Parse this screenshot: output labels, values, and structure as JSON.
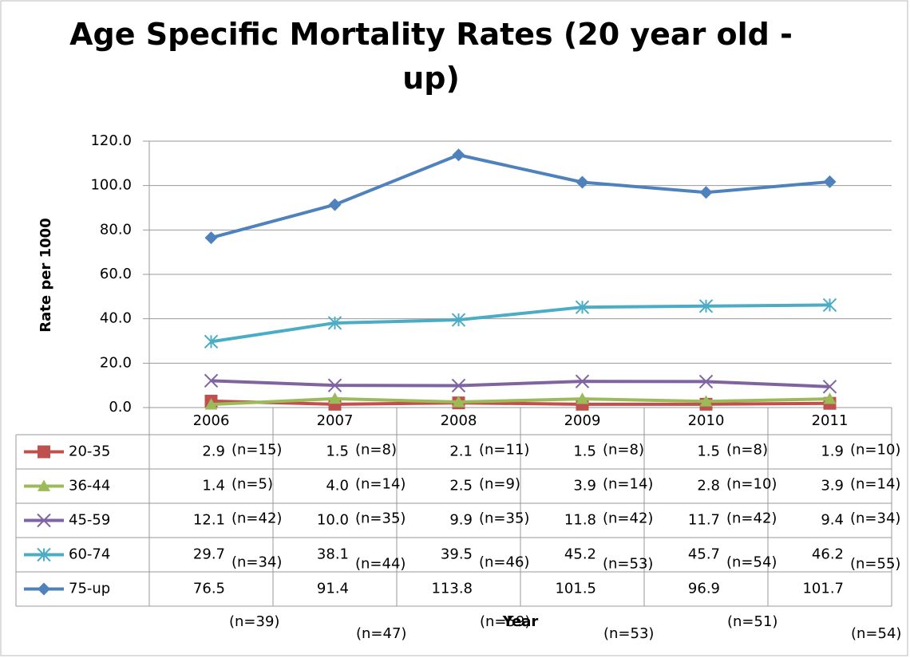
{
  "chart_data": {
    "type": "line",
    "title": "Age Specific Mortality Rates (20 year old - up)",
    "y_label": "Rate per 1000",
    "x_label": "Year",
    "categories": [
      "2006",
      "2007",
      "2008",
      "2009",
      "2010",
      "2011"
    ],
    "ylim": [
      0,
      120
    ],
    "yticks": [
      {
        "value": 0,
        "label": "0.0"
      },
      {
        "value": 20,
        "label": "20.0"
      },
      {
        "value": 40,
        "label": "40.0"
      },
      {
        "value": 60,
        "label": "60.0"
      },
      {
        "value": 80,
        "label": "80.0"
      },
      {
        "value": 100,
        "label": "100.0"
      },
      {
        "value": 120,
        "label": "120.0"
      }
    ],
    "grid": true,
    "series": [
      {
        "name": "20-35",
        "color": "#c0504d",
        "marker": "square",
        "values": [
          2.9,
          1.5,
          2.1,
          1.5,
          1.5,
          1.9
        ],
        "value_labels": [
          "2.9",
          "1.5",
          "2.1",
          "1.5",
          "1.5",
          "1.9"
        ],
        "annotations": [
          "(n=15)",
          "(n=8)",
          "(n=11)",
          "(n=8)",
          "(n=8)",
          "(n=10)"
        ]
      },
      {
        "name": "36-44",
        "color": "#9bbb59",
        "marker": "triangle",
        "values": [
          1.4,
          4.0,
          2.5,
          3.9,
          2.8,
          3.9
        ],
        "value_labels": [
          "1.4",
          "4.0",
          "2.5",
          "3.9",
          "2.8",
          "3.9"
        ],
        "annotations": [
          "(n=5)",
          "(n=14)",
          "(n=9)",
          "(n=14)",
          "(n=10)",
          "(n=14)"
        ]
      },
      {
        "name": "45-59",
        "color": "#8064a2",
        "marker": "x",
        "values": [
          12.1,
          10.0,
          9.9,
          11.8,
          11.7,
          9.4
        ],
        "value_labels": [
          "12.1",
          "10.0",
          "9.9",
          "11.8",
          "11.7",
          "9.4"
        ],
        "annotations": [
          "(n=42)",
          "(n=35)",
          "(n=35)",
          "(n=42)",
          "(n=42)",
          "(n=34)"
        ]
      },
      {
        "name": "60-74",
        "color": "#4bacc6",
        "marker": "asterisk",
        "values": [
          29.7,
          38.1,
          39.5,
          45.2,
          45.7,
          46.2
        ],
        "value_labels": [
          "29.7",
          "38.1",
          "39.5",
          "45.2",
          "45.7",
          "46.2"
        ],
        "annotations": [
          "(n=34)",
          "(n=44)",
          "(n=46)",
          "(n=53)",
          "(n=54)",
          "(n=55)"
        ]
      },
      {
        "name": "75-up",
        "color": "#4f81bd",
        "marker": "diamond",
        "values": [
          76.5,
          91.4,
          113.8,
          101.5,
          96.9,
          101.7
        ],
        "value_labels": [
          "76.5",
          "91.4",
          "113.8",
          "101.5",
          "96.9",
          "101.7"
        ],
        "annotations": [
          "(n=39)",
          "(n=47)",
          "(n=59)",
          "(n=53)",
          "(n=51)",
          "(n=54)"
        ]
      }
    ]
  }
}
